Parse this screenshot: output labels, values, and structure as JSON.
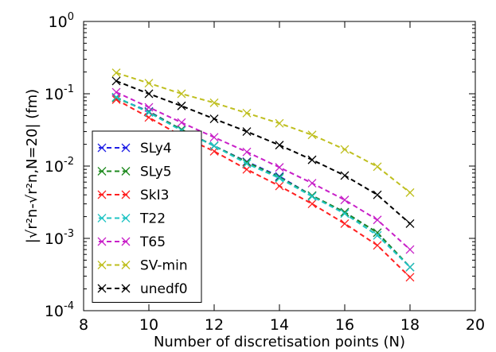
{
  "chart_data": {
    "type": "line",
    "xlabel": "Number of discretisation points (N)",
    "ylabel": "|√r²n-√r²n,N=20| (fm)",
    "xlim": [
      8,
      20
    ],
    "ylim": [
      0.0001,
      1
    ],
    "yscale": "log",
    "xticks": [
      "8",
      "10",
      "12",
      "14",
      "16",
      "18",
      "20"
    ],
    "yticks": [
      {
        "base": "10",
        "exp": "-4"
      },
      {
        "base": "10",
        "exp": "-3"
      },
      {
        "base": "10",
        "exp": "-2"
      },
      {
        "base": "10",
        "exp": "-1"
      },
      {
        "base": "10",
        "exp": "0"
      }
    ],
    "grid": false,
    "legend_position": "lower-left",
    "x": [
      9,
      10,
      11,
      12,
      13,
      14,
      15,
      16,
      17,
      18
    ],
    "series": [
      {
        "name": "SLy4",
        "color": "#1f1fe6",
        "values": [
          0.088,
          0.057,
          0.032,
          0.019,
          0.0115,
          0.0072,
          0.0039,
          0.0023,
          0.0012,
          0.0004
        ]
      },
      {
        "name": "SLy5",
        "color": "#1f8a1f",
        "values": [
          0.088,
          0.056,
          0.032,
          0.019,
          0.0113,
          0.007,
          0.0039,
          0.0023,
          0.0012,
          0.0004
        ]
      },
      {
        "name": "SkI3",
        "color": "#ff2020",
        "values": [
          0.083,
          0.047,
          0.026,
          0.016,
          0.009,
          0.0053,
          0.003,
          0.0016,
          0.0008,
          0.00029
        ]
      },
      {
        "name": "T22",
        "color": "#20c4c4",
        "values": [
          0.09,
          0.055,
          0.031,
          0.019,
          0.0108,
          0.0068,
          0.0038,
          0.0022,
          0.0011,
          0.0004
        ]
      },
      {
        "name": "T65",
        "color": "#c820c8",
        "values": [
          0.105,
          0.065,
          0.04,
          0.025,
          0.0157,
          0.0096,
          0.0058,
          0.0034,
          0.0018,
          0.0007
        ]
      },
      {
        "name": "SV-min",
        "color": "#bfbf1f",
        "values": [
          0.195,
          0.14,
          0.1,
          0.075,
          0.054,
          0.039,
          0.027,
          0.017,
          0.0098,
          0.0043
        ]
      },
      {
        "name": "unedf0",
        "color": "#000000",
        "values": [
          0.15,
          0.1,
          0.068,
          0.045,
          0.03,
          0.0195,
          0.0122,
          0.0074,
          0.004,
          0.0016
        ]
      }
    ]
  }
}
